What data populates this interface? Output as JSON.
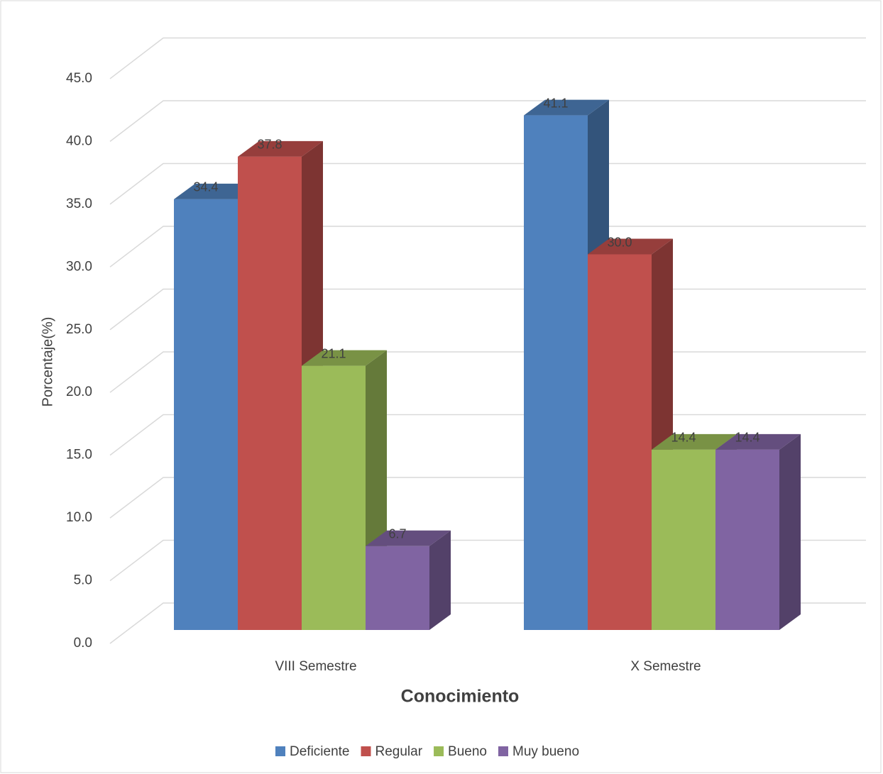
{
  "chart_data": {
    "type": "bar3d",
    "title": "Conocimiento",
    "y_label": "Porcentaje(%)",
    "categories": [
      "VIII Semestre",
      "X Semestre"
    ],
    "series": [
      {
        "name": "Deficiente",
        "color": "#4f81bd",
        "values": [
          34.4,
          41.1
        ],
        "value_labels": [
          "34.4",
          "41.1"
        ]
      },
      {
        "name": "Regular",
        "color": "#c0504d",
        "values": [
          37.8,
          30.0
        ],
        "value_labels": [
          "37.8",
          "30.0"
        ]
      },
      {
        "name": "Bueno",
        "color": "#9bbb59",
        "values": [
          21.1,
          14.4
        ],
        "value_labels": [
          "21.1",
          "14.4"
        ]
      },
      {
        "name": "Muy bueno",
        "color": "#8064a2",
        "values": [
          6.7,
          14.4
        ],
        "value_labels": [
          "6.7",
          "14.4"
        ]
      }
    ],
    "ylim": [
      0,
      45
    ],
    "yticks": [
      {
        "value": 0,
        "label": "0.0"
      },
      {
        "value": 5,
        "label": "5.0"
      },
      {
        "value": 10,
        "label": "10.0"
      },
      {
        "value": 15,
        "label": "15.0"
      },
      {
        "value": 20,
        "label": "20.0"
      },
      {
        "value": 25,
        "label": "25.0"
      },
      {
        "value": 30,
        "label": "30.0"
      },
      {
        "value": 35,
        "label": "35.0"
      },
      {
        "value": 40,
        "label": "40.0"
      },
      {
        "value": 45,
        "label": "45.0"
      }
    ],
    "grid": true,
    "legend": "bottom"
  }
}
